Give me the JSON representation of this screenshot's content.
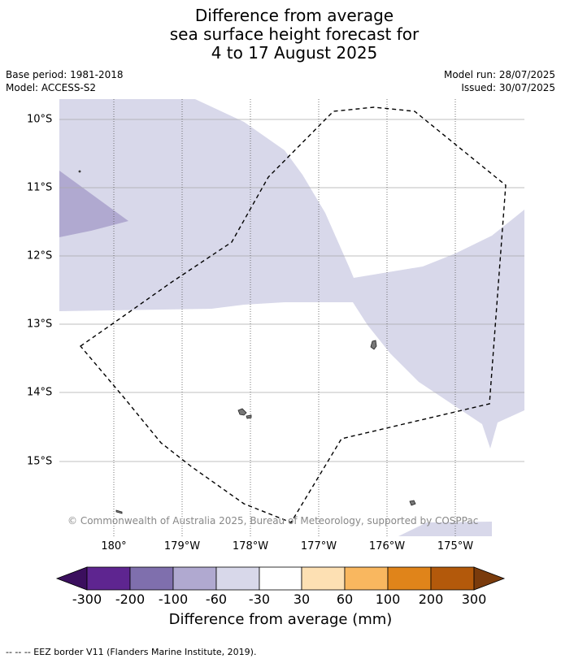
{
  "header": {
    "title_lines": [
      "Difference from average",
      "sea surface height forecast for",
      "4 to 17 August 2025"
    ],
    "base_period": "Base period: 1981-2018",
    "model": "Model: ACCESS-S2",
    "model_run": "Model run: 28/07/2025",
    "issued": "Issued: 30/07/2025"
  },
  "map": {
    "lat_labels": [
      "10°S",
      "11°S",
      "12°S",
      "13°S",
      "14°S",
      "15°S"
    ],
    "lon_labels": [
      "180°",
      "179°W",
      "178°W",
      "177°W",
      "176°W",
      "175°W"
    ],
    "copyright": "© Commonwealth of Australia 2025, Bureau of Meteorology, supported by COSPPac",
    "eez_border_style": "dashed black"
  },
  "colorbar": {
    "tick_labels": [
      "-300",
      "-200",
      "-100",
      "-60",
      "-30",
      "30",
      "60",
      "100",
      "200",
      "300"
    ],
    "colors": [
      "#3b0f5e",
      "#5e2590",
      "#7f6fad",
      "#b0a9d0",
      "#d8d8ea",
      "#ffffff",
      "#fde0b3",
      "#f9b75f",
      "#e0841a",
      "#b3590b",
      "#7a3b0c"
    ],
    "title": "Difference from average (mm)"
  },
  "footnote": "--  --  -- EEZ border V11 (Flanders Marine Institute, 2019)."
}
